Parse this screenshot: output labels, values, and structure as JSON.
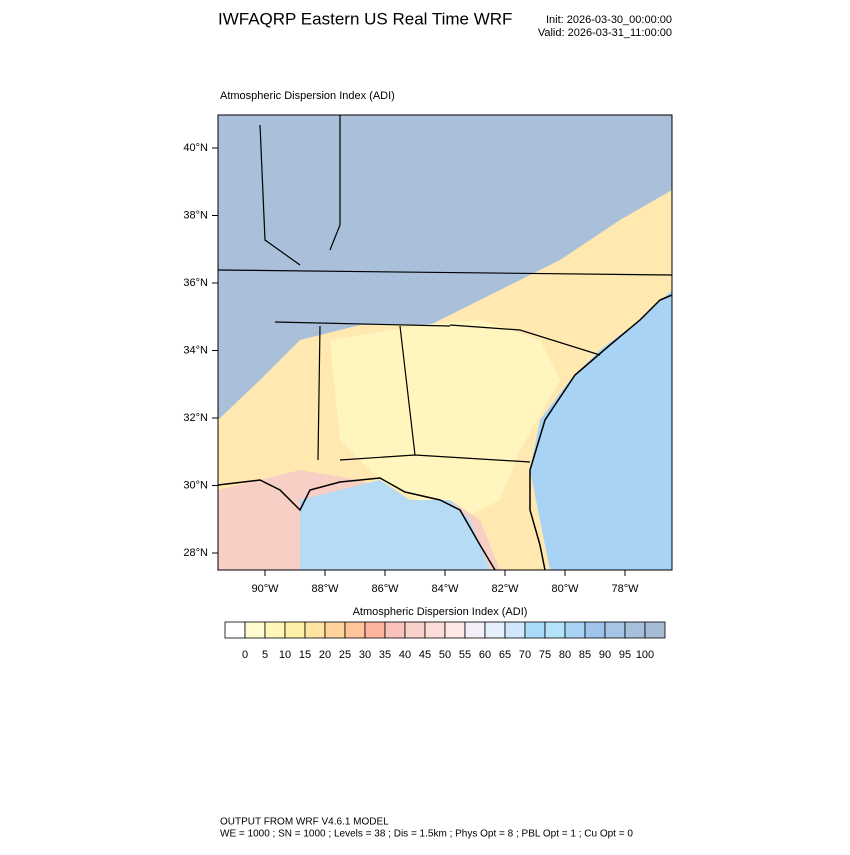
{
  "header": {
    "title": "IWFAQRP Eastern US Real Time WRF",
    "init": "Init: 2026-03-30_00:00:00",
    "valid": "Valid: 2026-03-31_11:00:00"
  },
  "map": {
    "title": "Atmospheric Dispersion Index   (ADI)",
    "lat_labels": [
      "40°N",
      "38°N",
      "36°N",
      "34°N",
      "32°N",
      "30°N",
      "28°N"
    ],
    "lon_labels": [
      "90°W",
      "88°W",
      "86°W",
      "84°W",
      "82°W",
      "80°W",
      "78°W"
    ]
  },
  "colorbar": {
    "title": "Atmospheric Dispersion Index  (ADI)",
    "labels": [
      "0",
      "5",
      "10",
      "15",
      "20",
      "25",
      "30",
      "35",
      "40",
      "45",
      "50",
      "55",
      "60",
      "65",
      "70",
      "75",
      "80",
      "85",
      "90",
      "95",
      "100"
    ],
    "colors": [
      "#ffffff",
      "#fffbd0",
      "#fff6b8",
      "#fff0a8",
      "#ffe3a0",
      "#ffd39a",
      "#ffc49a",
      "#ffb4a0",
      "#f9c3bc",
      "#fad0cc",
      "#fcdcd8",
      "#fde8e6",
      "#f4eefa",
      "#e6f0fd",
      "#d0e6fb",
      "#a8dcf8",
      "#b4e2fa",
      "#a8d3f4",
      "#9fc4ec",
      "#a7c3e6",
      "#a6bfdd",
      "#a6bbd6"
    ]
  },
  "footer": {
    "line1": "OUTPUT FROM WRF V4.6.1 MODEL",
    "line2": "WE = 1000 ; SN = 1000 ; Levels = 38 ; Dis = 1.5km ; Phys Opt = 8 ; PBL Opt = 1 ; Cu Opt = 0"
  }
}
